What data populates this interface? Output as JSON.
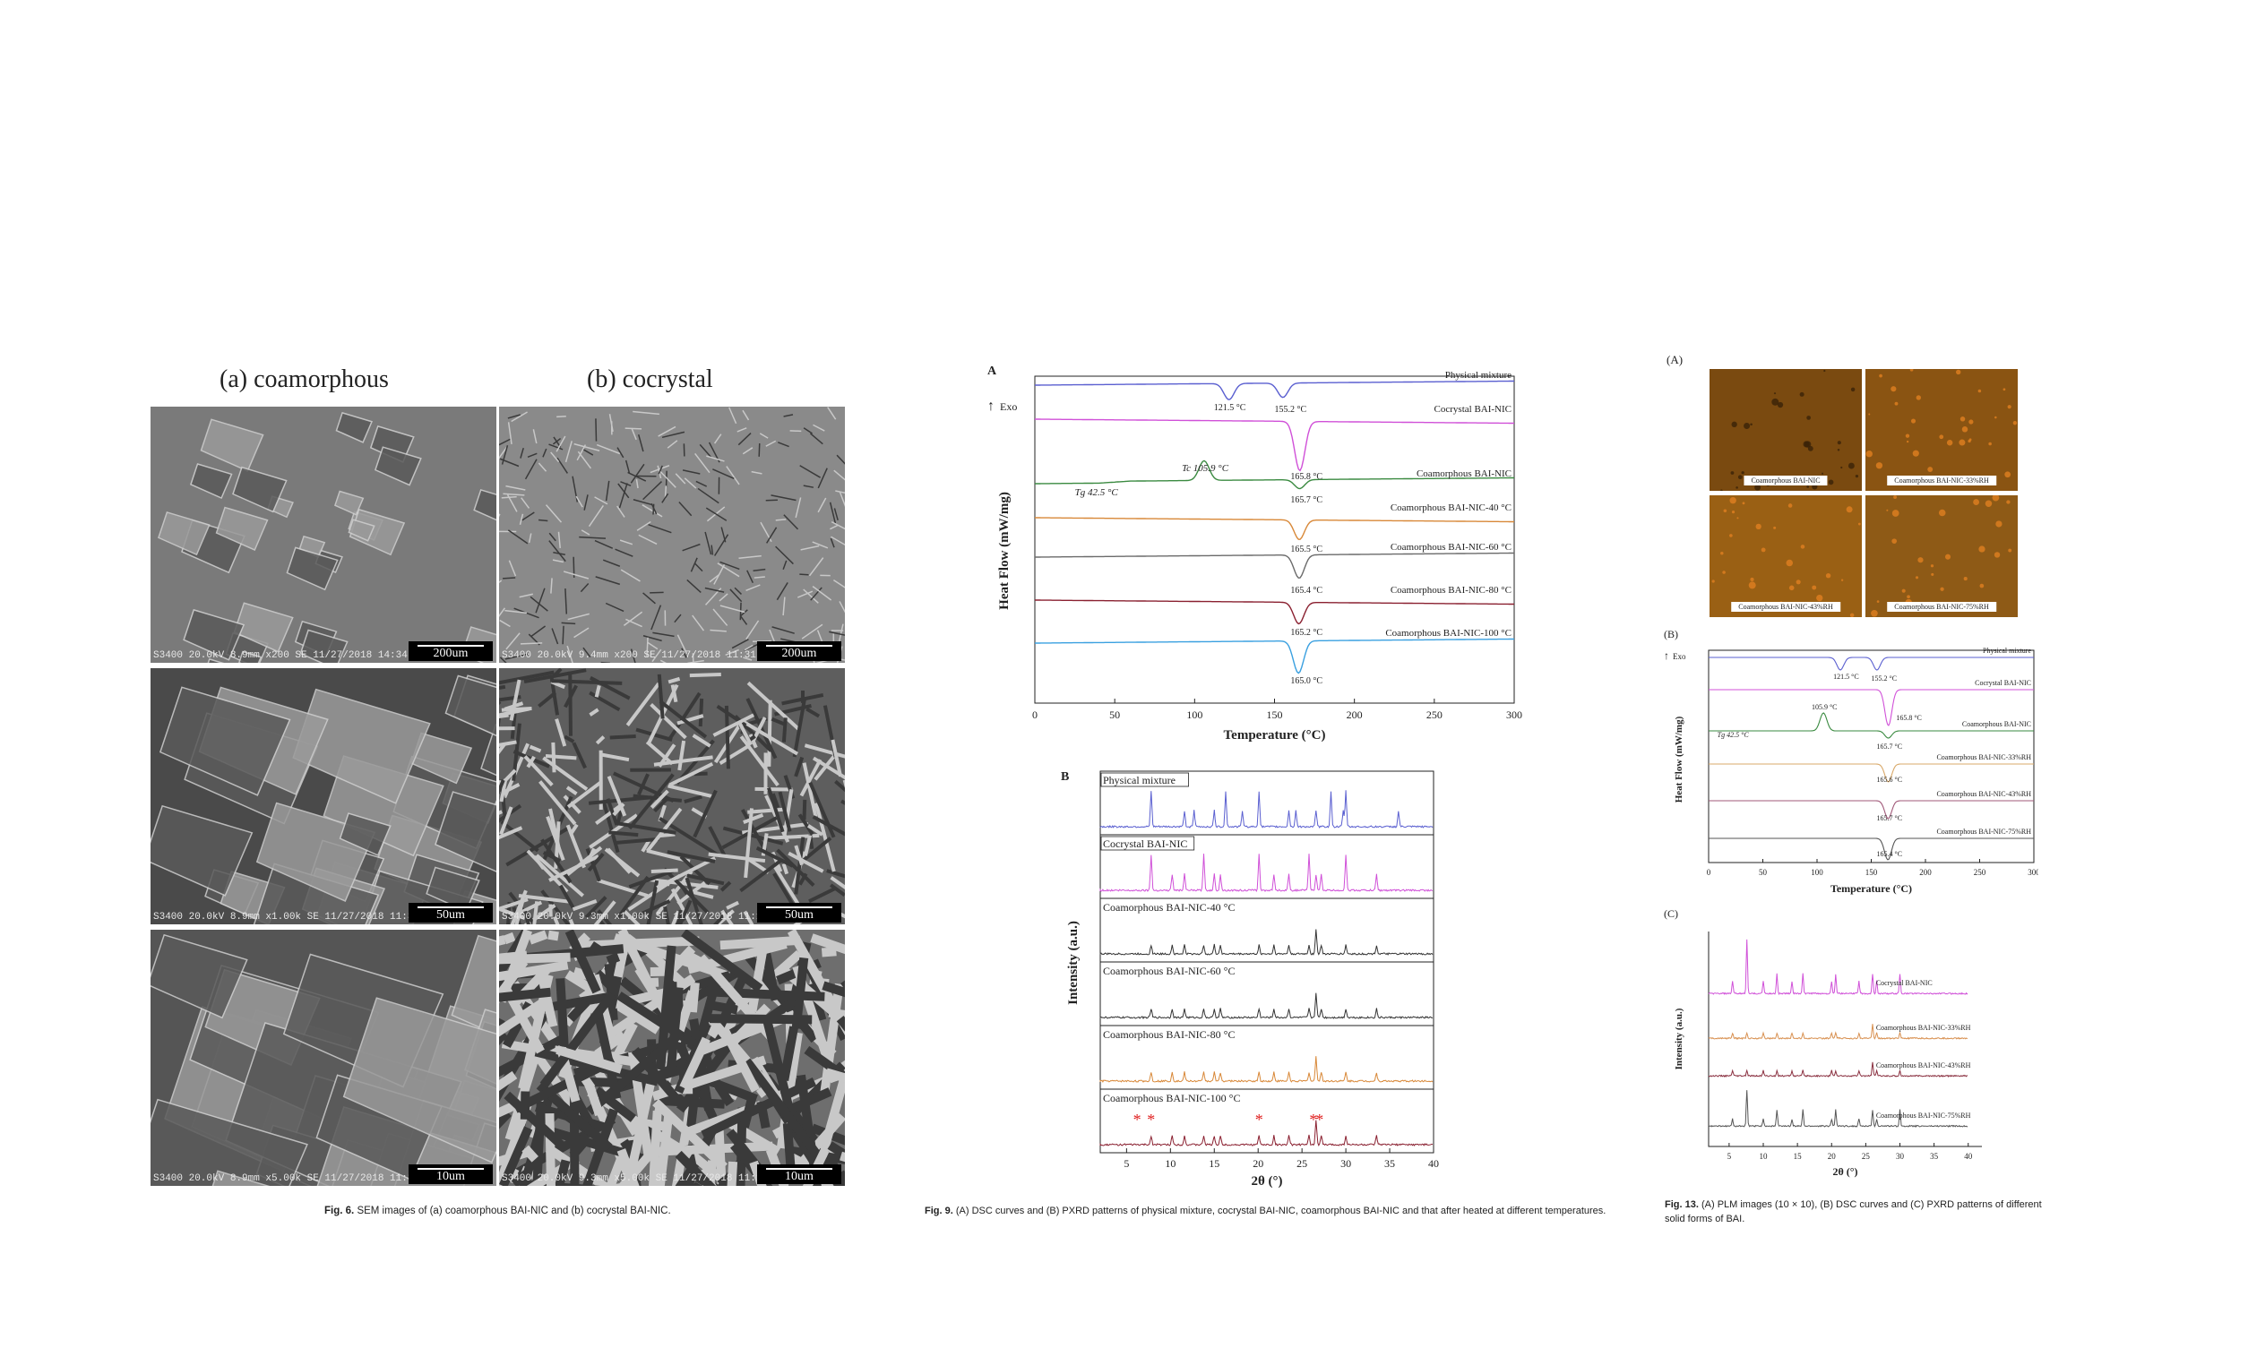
{
  "fig6": {
    "col_a": "(a) coamorphous",
    "col_b": "(b) cocrystal",
    "images": [
      {
        "meta": "S3400 20.0kV 8.9mm x200 SE  11/27/2018 14:34",
        "scale": "200um",
        "tone": "#7a7a7a"
      },
      {
        "meta": "S3400 20.0kV 9.4mm x200 SE  11/27/2018 11:31",
        "scale": "200um",
        "tone": "#8a8a8a"
      },
      {
        "meta": "S3400 20.0kV 8.9mm x1.00k SE  11/27/2018 11:33",
        "scale": "50um",
        "tone": "#4a4a4a"
      },
      {
        "meta": "S3400 20.0kV 9.3mm x1.00k SE  11/27/2018 11:12",
        "scale": "50um",
        "tone": "#5e5e5e"
      },
      {
        "meta": "S3400 20.0kV 8.9mm x5.00k SE  11/27/2018 11:32",
        "scale": "10um",
        "tone": "#555555"
      },
      {
        "meta": "S3400 20.0kV 9.3mm x5.00k SE  11/27/2018 11:11",
        "scale": "10um",
        "tone": "#6e6e6e"
      }
    ],
    "caption_label": "Fig. 6.",
    "caption_text": "SEM images of (a) coamorphous BAI-NIC and (b) cocrystal BAI-NIC."
  },
  "fig9": {
    "panel_a": "A",
    "exo": "Exo",
    "ylabel": "Heat Flow (mW/mg)",
    "xlabel": "Temperature (°C)",
    "xticks": [
      "0",
      "50",
      "100",
      "150",
      "200",
      "250",
      "300"
    ],
    "curves": [
      {
        "name": "Physical mixture",
        "color": "#5a5fd0"
      },
      {
        "name": "Cocrystal BAI-NIC",
        "color": "#d050d8"
      },
      {
        "name": "Coamorphous BAI-NIC",
        "color": "#3a8a40"
      },
      {
        "name": "Coamorphous BAI-NIC-40 °C",
        "color": "#d88838"
      },
      {
        "name": "Coamorphous BAI-NIC-60 °C",
        "color": "#6a6a6a"
      },
      {
        "name": "Coamorphous BAI-NIC-80 °C",
        "color": "#8a2030"
      },
      {
        "name": "Coamorphous BAI-NIC-100 °C",
        "color": "#3aa0e0"
      }
    ],
    "ann": {
      "p1": "121.5 °C",
      "p2": "155.2 °C",
      "p3": "165.8 °C",
      "tc": "Tc 105.9 °C",
      "tg": "Tg 42.5 °C",
      "p4": "165.7 °C",
      "p5": "165.5 °C",
      "p6": "165.4 °C",
      "p7": "165.2 °C",
      "p8": "165.0 °C"
    },
    "panel_b": "B",
    "b_ylabel": "Intensity (a.u.)",
    "b_xlabel": "2θ (°)",
    "b_xticks": [
      "5",
      "10",
      "15",
      "20",
      "25",
      "30",
      "35",
      "40"
    ],
    "b_panels": [
      {
        "name": "Physical mixture",
        "color": "#5a5fd0"
      },
      {
        "name": "Cocrystal BAI-NIC",
        "color": "#d050d8"
      },
      {
        "name": "Coamorphous BAI-NIC-40 °C",
        "color": "#333333"
      },
      {
        "name": "Coamorphous BAI-NIC-60 °C",
        "color": "#333333"
      },
      {
        "name": "Coamorphous BAI-NIC-80 °C",
        "color": "#d88838"
      },
      {
        "name": "Coamorphous BAI-NIC-100 °C",
        "color": "#8a2030"
      }
    ],
    "star": "*",
    "caption_label": "Fig. 9.",
    "caption_text": "(A) DSC curves and (B) PXRD patterns of physical mixture, cocrystal BAI-NIC, coamorphous BAI-NIC and that after heated at different temperatures."
  },
  "fig13": {
    "panel_a": "(A)",
    "plm_labels": [
      "Coamorphous BAI-NIC",
      "Coamorphous BAI-NIC-33%RH",
      "Coamorphous BAI-NIC-43%RH",
      "Coamorphous BAI-NIC-75%RH"
    ],
    "panel_b": "(B)",
    "exo": "Exo",
    "b_ylabel": "Heat Flow (mW/mg)",
    "b_xlabel": "Temperature (°C)",
    "b_xticks": [
      "0",
      "50",
      "100",
      "150",
      "200",
      "250",
      "300"
    ],
    "b_curves": [
      {
        "name": "Physical mixture",
        "color": "#5a5fd0"
      },
      {
        "name": "Cocrystal BAI-NIC",
        "color": "#d050d8"
      },
      {
        "name": "Coamorphous BAI-NIC",
        "color": "#3a8a40"
      },
      {
        "name": "Coamorphous BAI-NIC-33%RH",
        "color": "#d8a868"
      },
      {
        "name": "Coamorphous BAI-NIC-43%RH",
        "color": "#a05878"
      },
      {
        "name": "Coamorphous BAI-NIC-75%RH",
        "color": "#555555"
      }
    ],
    "b_ann": {
      "p1": "121.5 °C",
      "p2": "155.2 °C",
      "tc": "105.9 °C",
      "p3": "165.8 °C",
      "tg": "Tg 42.5 °C",
      "p4": "165.7 °C",
      "p5": "165.6 °C",
      "p6": "165.7 °C",
      "p7": "165.4 °C"
    },
    "panel_c": "(C)",
    "c_ylabel": "Intensity (a.u.)",
    "c_xlabel": "2θ (°)",
    "c_xticks": [
      "5",
      "10",
      "15",
      "20",
      "25",
      "30",
      "35",
      "40"
    ],
    "c_curves": [
      {
        "name": "Cocrystal BAI-NIC",
        "color": "#d050d8"
      },
      {
        "name": "Coamorphous BAI-NIC-33%RH",
        "color": "#d89050"
      },
      {
        "name": "Coamorphous BAI-NIC-43%RH",
        "color": "#8a3040"
      },
      {
        "name": "Coamorphous BAI-NIC-75%RH",
        "color": "#555555"
      }
    ],
    "caption_label": "Fig. 13.",
    "caption_text_1": "(A) PLM images (10 × 10), (B) DSC curves and (C) PXRD patterns of different",
    "caption_text_2": "solid forms of BAI."
  }
}
